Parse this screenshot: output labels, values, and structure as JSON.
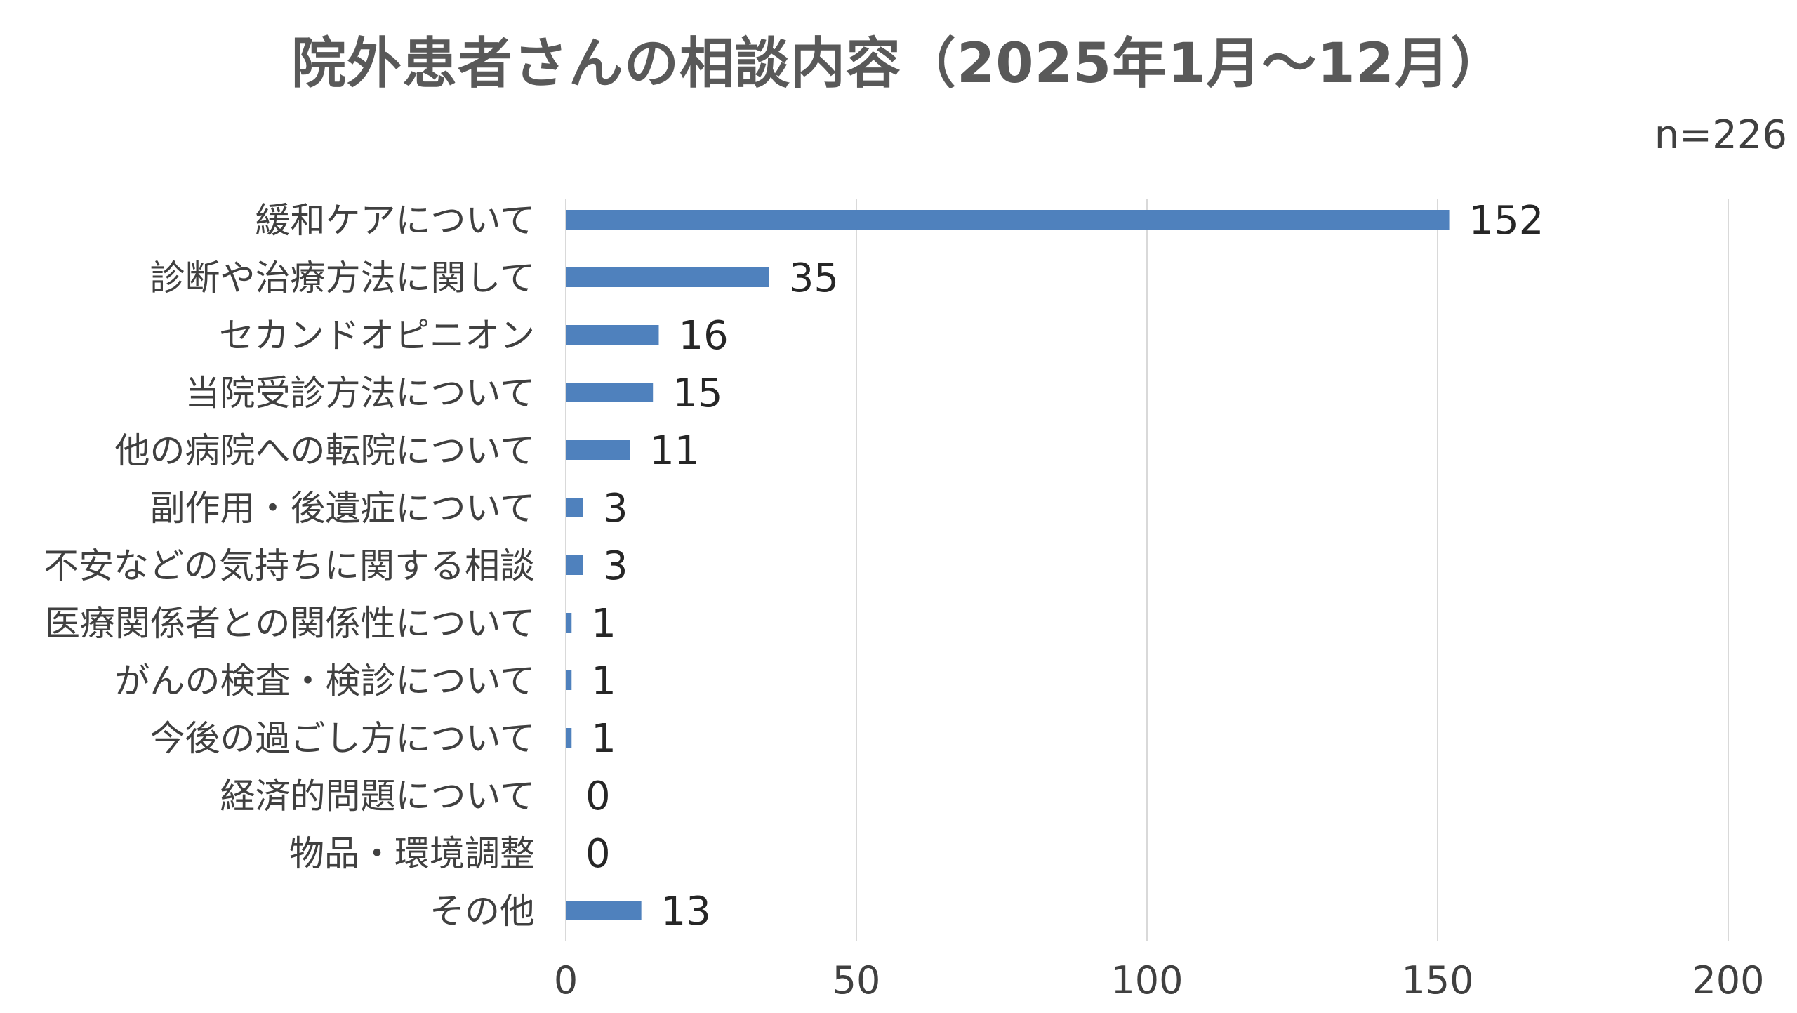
{
  "chart_data": {
    "type": "bar",
    "orientation": "horizontal",
    "title": "院外患者さんの相談内容（2025年1月～12月）",
    "note": "n=226",
    "categories": [
      "緩和ケアについて",
      "診断や治療方法に関して",
      "セカンドオピニオン",
      "当院受診方法について",
      "他の病院への転院について",
      "副作用・後遺症について",
      "不安などの気持ちに関する相談",
      "医療関係者との関係性について",
      "がんの検査・検診について",
      "今後の過ごし方について",
      "経済的問題について",
      "物品・環境調整",
      "その他"
    ],
    "values": [
      152,
      35,
      16,
      15,
      11,
      3,
      3,
      1,
      1,
      1,
      0,
      0,
      13
    ],
    "xlim": [
      0,
      200
    ],
    "xticks": [
      0,
      50,
      100,
      150,
      200
    ],
    "xlabel": "",
    "ylabel": "",
    "grid": "vertical",
    "legend": "none",
    "bar_color": "#4f81bd",
    "grid_color": "#d9d9d9"
  }
}
